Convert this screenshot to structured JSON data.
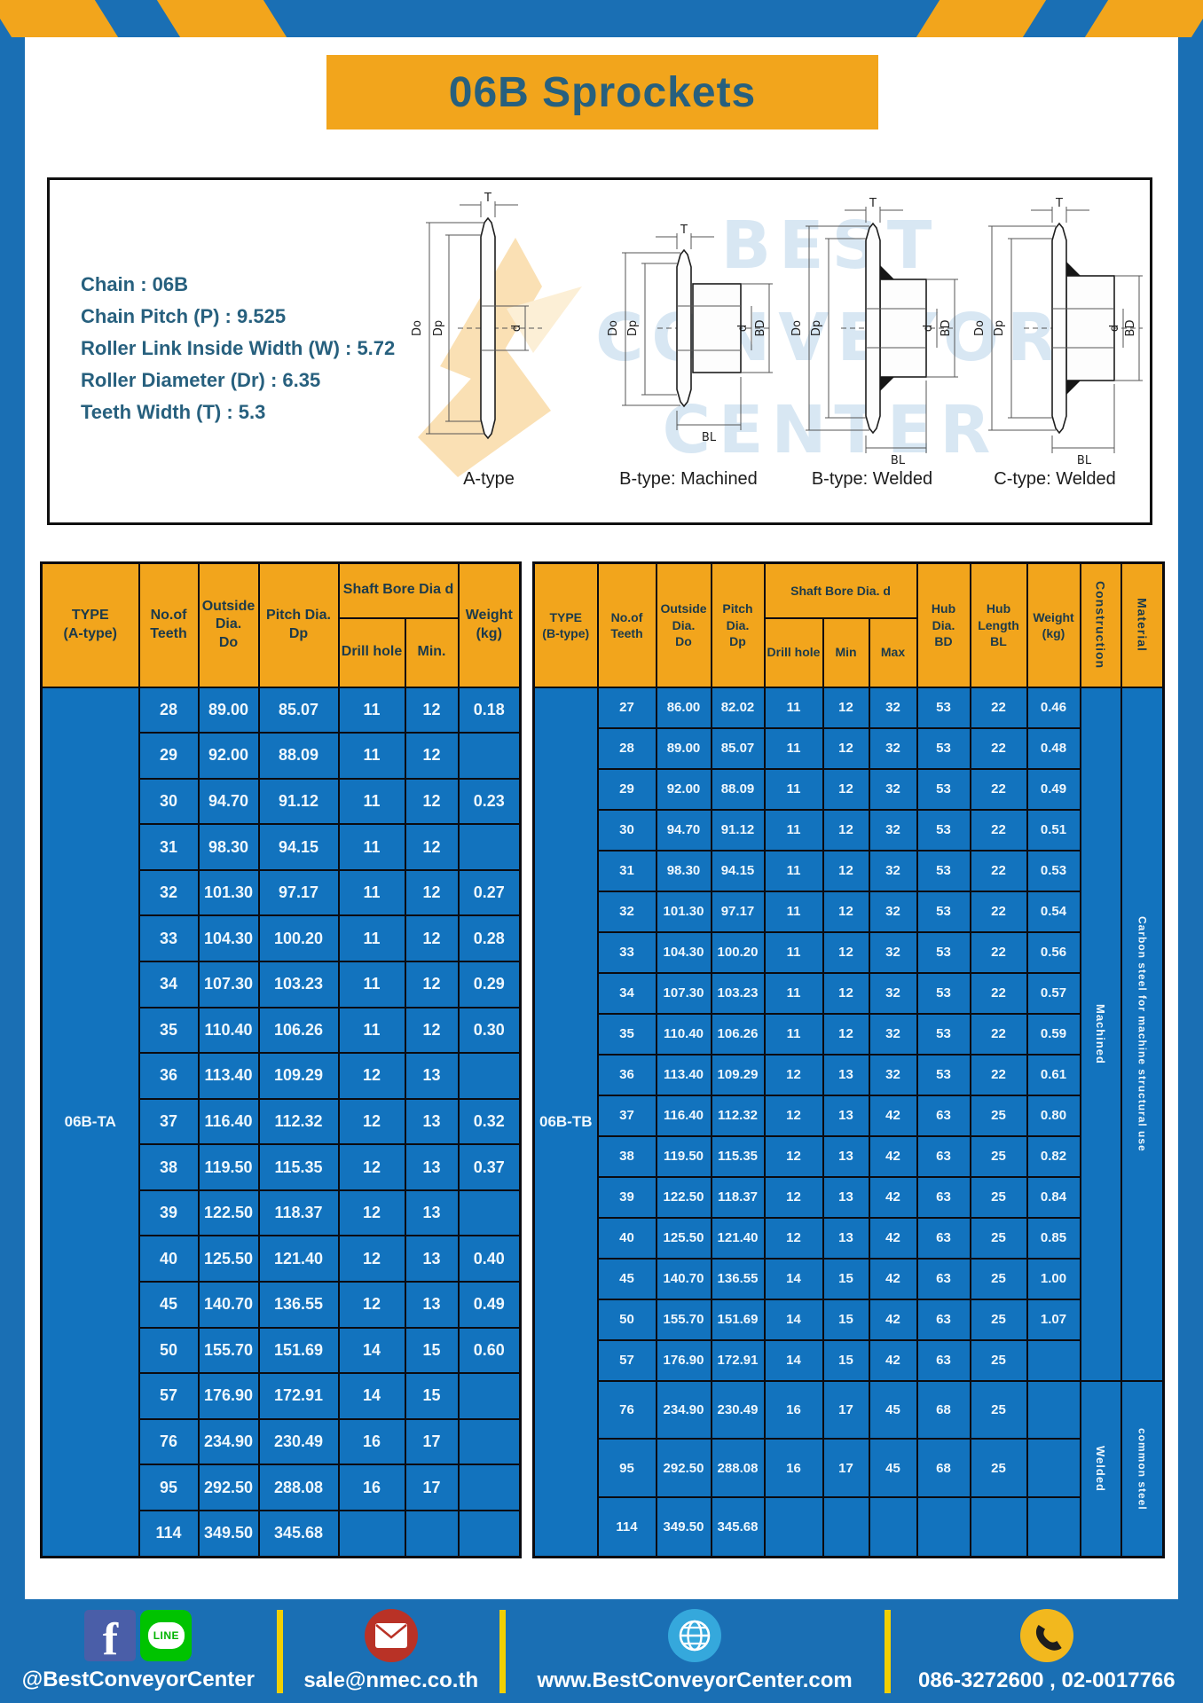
{
  "colors": {
    "frame_blue": "#1a6fb4",
    "cell_blue": "#1273be",
    "yellow": "#f2a51c",
    "teal_text": "#27607e",
    "header_text": "#1c3a4a",
    "footer_yellow": "#f2cf00"
  },
  "title": "06B Sprockets",
  "specs": [
    "Chain  : 06B",
    "Chain Pitch (P)  :  9.525",
    "Roller Link Inside Width (W)  :  5.72",
    "Roller Diameter (Dr)  : 6.35",
    "Teeth Width (T)  :  5.3"
  ],
  "diagram": {
    "watermark": [
      "BEST",
      "CONVEYOR",
      "CENTER"
    ],
    "dims": {
      "t": "T",
      "do": "Do",
      "dp": "Dp",
      "d": "d",
      "bd": "BD",
      "bl": "BL"
    },
    "captions": [
      "A-type",
      "B-type: Machined",
      "B-type: Welded",
      "C-type: Welded"
    ]
  },
  "table_a": {
    "header": {
      "type": "TYPE\n(A-type)",
      "teeth": "No.of\nTeeth",
      "outside": "Outside\nDia.\nDo",
      "pitch": "Pitch Dia.\nDp",
      "shaft_bore": "Shaft Bore Dia d",
      "drill": "Drill hole",
      "min": "Min.",
      "weight": "Weight\n(kg)"
    },
    "type_label": "06B-TA",
    "rows": [
      [
        "28",
        "89.00",
        "85.07",
        "11",
        "12",
        "0.18"
      ],
      [
        "29",
        "92.00",
        "88.09",
        "11",
        "12",
        ""
      ],
      [
        "30",
        "94.70",
        "91.12",
        "11",
        "12",
        "0.23"
      ],
      [
        "31",
        "98.30",
        "94.15",
        "11",
        "12",
        ""
      ],
      [
        "32",
        "101.30",
        "97.17",
        "11",
        "12",
        "0.27"
      ],
      [
        "33",
        "104.30",
        "100.20",
        "11",
        "12",
        "0.28"
      ],
      [
        "34",
        "107.30",
        "103.23",
        "11",
        "12",
        "0.29"
      ],
      [
        "35",
        "110.40",
        "106.26",
        "11",
        "12",
        "0.30"
      ],
      [
        "36",
        "113.40",
        "109.29",
        "12",
        "13",
        ""
      ],
      [
        "37",
        "116.40",
        "112.32",
        "12",
        "13",
        "0.32"
      ],
      [
        "38",
        "119.50",
        "115.35",
        "12",
        "13",
        "0.37"
      ],
      [
        "39",
        "122.50",
        "118.37",
        "12",
        "13",
        ""
      ],
      [
        "40",
        "125.50",
        "121.40",
        "12",
        "13",
        "0.40"
      ],
      [
        "45",
        "140.70",
        "136.55",
        "12",
        "13",
        "0.49"
      ],
      [
        "50",
        "155.70",
        "151.69",
        "14",
        "15",
        "0.60"
      ],
      [
        "57",
        "176.90",
        "172.91",
        "14",
        "15",
        ""
      ],
      [
        "76",
        "234.90",
        "230.49",
        "16",
        "17",
        ""
      ],
      [
        "95",
        "292.50",
        "288.08",
        "16",
        "17",
        ""
      ],
      [
        "114",
        "349.50",
        "345.68",
        "",
        "",
        ""
      ]
    ]
  },
  "table_b": {
    "header": {
      "type": "TYPE\n(B-type)",
      "teeth": "No.of\nTeeth",
      "outside": "Outside\nDia.\nDo",
      "pitch": "Pitch\nDia.\nDp",
      "shaft_bore": "Shaft Bore Dia. d",
      "drill": "Drill hole",
      "min": "Min",
      "max": "Max",
      "hub_dia": "Hub\nDia.\nBD",
      "hub_length": "Hub\nLength\nBL",
      "weight": "Weight\n(kg)",
      "construction": "Construction",
      "material": "Material"
    },
    "type_label": "06B-TB",
    "rows": [
      [
        "27",
        "86.00",
        "82.02",
        "11",
        "12",
        "32",
        "53",
        "22",
        "0.46"
      ],
      [
        "28",
        "89.00",
        "85.07",
        "11",
        "12",
        "32",
        "53",
        "22",
        "0.48"
      ],
      [
        "29",
        "92.00",
        "88.09",
        "11",
        "12",
        "32",
        "53",
        "22",
        "0.49"
      ],
      [
        "30",
        "94.70",
        "91.12",
        "11",
        "12",
        "32",
        "53",
        "22",
        "0.51"
      ],
      [
        "31",
        "98.30",
        "94.15",
        "11",
        "12",
        "32",
        "53",
        "22",
        "0.53"
      ],
      [
        "32",
        "101.30",
        "97.17",
        "11",
        "12",
        "32",
        "53",
        "22",
        "0.54"
      ],
      [
        "33",
        "104.30",
        "100.20",
        "11",
        "12",
        "32",
        "53",
        "22",
        "0.56"
      ],
      [
        "34",
        "107.30",
        "103.23",
        "11",
        "12",
        "32",
        "53",
        "22",
        "0.57"
      ],
      [
        "35",
        "110.40",
        "106.26",
        "11",
        "12",
        "32",
        "53",
        "22",
        "0.59"
      ],
      [
        "36",
        "113.40",
        "109.29",
        "12",
        "13",
        "32",
        "53",
        "22",
        "0.61"
      ],
      [
        "37",
        "116.40",
        "112.32",
        "12",
        "13",
        "42",
        "63",
        "25",
        "0.80"
      ],
      [
        "38",
        "119.50",
        "115.35",
        "12",
        "13",
        "42",
        "63",
        "25",
        "0.82"
      ],
      [
        "39",
        "122.50",
        "118.37",
        "12",
        "13",
        "42",
        "63",
        "25",
        "0.84"
      ],
      [
        "40",
        "125.50",
        "121.40",
        "12",
        "13",
        "42",
        "63",
        "25",
        "0.85"
      ],
      [
        "45",
        "140.70",
        "136.55",
        "14",
        "15",
        "42",
        "63",
        "25",
        "1.00"
      ],
      [
        "50",
        "155.70",
        "151.69",
        "14",
        "15",
        "42",
        "63",
        "25",
        "1.07"
      ],
      [
        "57",
        "176.90",
        "172.91",
        "14",
        "15",
        "42",
        "63",
        "25",
        ""
      ],
      [
        "76",
        "234.90",
        "230.49",
        "16",
        "17",
        "45",
        "68",
        "25",
        ""
      ],
      [
        "95",
        "292.50",
        "288.08",
        "16",
        "17",
        "45",
        "68",
        "25",
        ""
      ],
      [
        "114",
        "349.50",
        "345.68",
        "",
        "",
        "",
        "",
        "",
        ""
      ]
    ],
    "construction_groups": [
      {
        "label": "Machined",
        "span": 17
      },
      {
        "label": "Welded",
        "span": 3
      }
    ],
    "material_groups": [
      {
        "label": "Carbon steel for machine structural use",
        "span": 17
      },
      {
        "label": "common steel",
        "span": 3
      }
    ]
  },
  "footer": {
    "items": [
      {
        "label": "@BestConveyorCenter",
        "line_text": "LINE"
      },
      {
        "label": "sale@nmec.co.th"
      },
      {
        "label": "www.BestConveyorCenter.com"
      },
      {
        "label": "086-3272600 , 02-0017766"
      }
    ]
  }
}
